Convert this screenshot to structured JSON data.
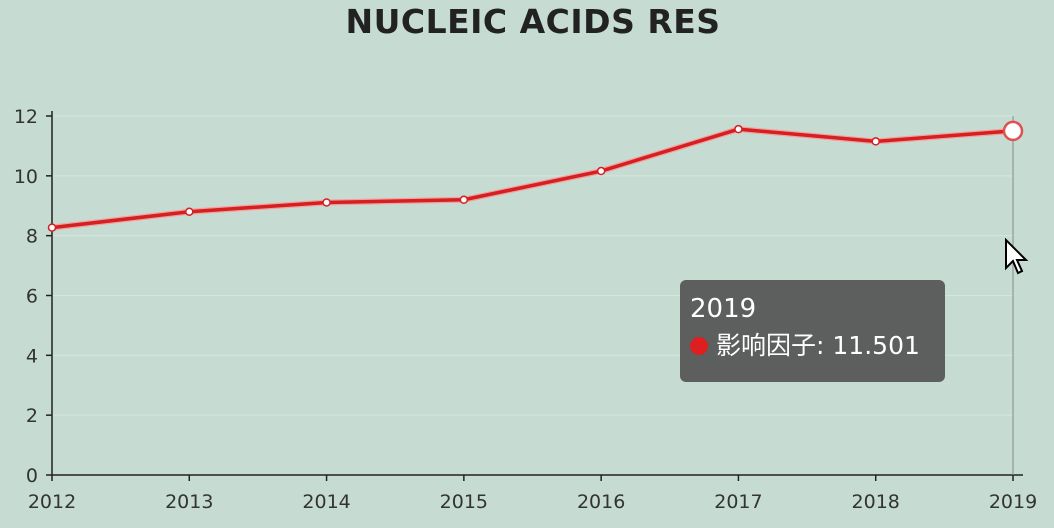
{
  "chart_data": {
    "type": "line",
    "title": "NUCLEIC ACIDS RES",
    "xlabel": "",
    "ylabel": "",
    "categories": [
      "2012",
      "2013",
      "2014",
      "2015",
      "2016",
      "2017",
      "2018",
      "2019"
    ],
    "series": [
      {
        "name": "影响因子",
        "values": [
          8.27,
          8.8,
          9.11,
          9.2,
          10.16,
          11.56,
          11.15,
          11.501
        ],
        "color": "#d42020"
      }
    ],
    "ylim": [
      0,
      12
    ],
    "yticks": [
      "0",
      "2",
      "4",
      "6",
      "8",
      "10",
      "12"
    ],
    "grid": true,
    "legend": "none"
  },
  "tooltip": {
    "title": "2019",
    "series_name": "影响因子",
    "separator": ":",
    "value": "11.501",
    "highlighted_index": 7
  }
}
